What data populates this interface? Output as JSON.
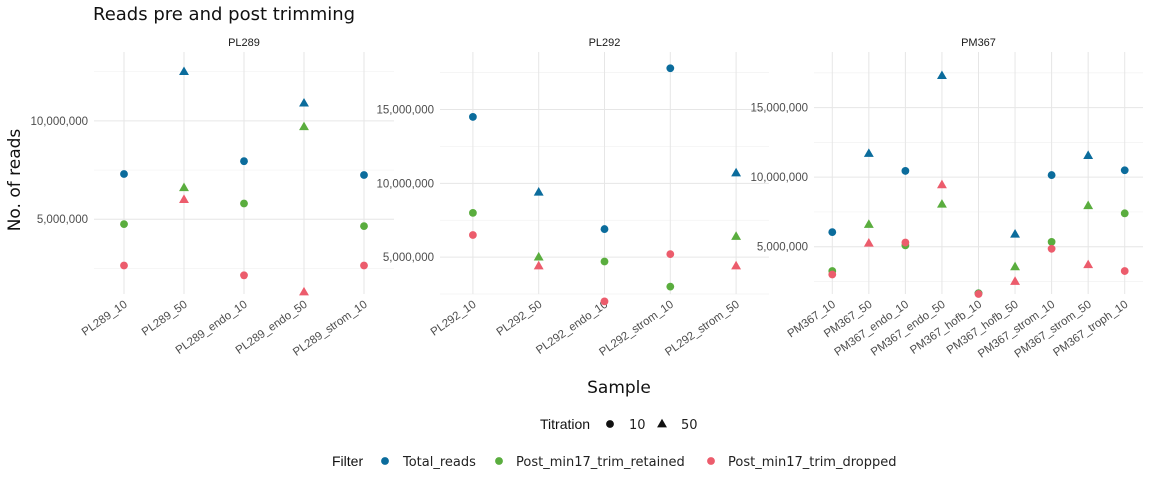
{
  "chart_data": {
    "type": "scatter",
    "title": "Reads pre and post trimming",
    "xlabel": "Sample",
    "ylabel": "No. of reads",
    "grid": true,
    "legends": {
      "titration": {
        "title": "Titration",
        "items": [
          {
            "label": "10",
            "shape": "circle"
          },
          {
            "label": "50",
            "shape": "triangle"
          }
        ]
      },
      "filter": {
        "title": "Filter",
        "items": [
          {
            "label": "Total_reads",
            "color": "#0b6c9c"
          },
          {
            "label": "Post_min17_trim_retained",
            "color": "#5aad3e"
          },
          {
            "label": "Post_min17_trim_dropped",
            "color": "#ec5c6c"
          }
        ]
      }
    },
    "facets": [
      {
        "name": "PL289",
        "ylim": [
          1200000,
          13500000
        ],
        "yticks": [
          5000000,
          10000000
        ],
        "ytick_labels": [
          "5,000,000",
          "10,000,000"
        ],
        "categories": [
          "PL289_10",
          "PL289_50",
          "PL289_endo_10",
          "PL289_endo_50",
          "PL289_strom_10"
        ],
        "titration": [
          "10",
          "50",
          "10",
          "50",
          "10"
        ],
        "series": [
          {
            "name": "Total_reads",
            "values": [
              7300000,
              12500000,
              7950000,
              10900000,
              7250000
            ]
          },
          {
            "name": "Post_min17_trim_retained",
            "values": [
              4750000,
              6600000,
              5800000,
              9700000,
              4650000
            ]
          },
          {
            "name": "Post_min17_trim_dropped",
            "values": [
              2650000,
              6000000,
              2150000,
              1300000,
              2650000
            ]
          }
        ]
      },
      {
        "name": "PL292",
        "ylim": [
          2500000,
          18900000
        ],
        "yticks": [
          5000000,
          10000000,
          15000000
        ],
        "ytick_labels": [
          "5,000,000",
          "10,000,000",
          "15,000,000"
        ],
        "categories": [
          "PL292_10",
          "PL292_50",
          "PL292_endo_10",
          "PL292_strom_10",
          "PL292_strom_50"
        ],
        "titration": [
          "10",
          "50",
          "10",
          "10",
          "50"
        ],
        "series": [
          {
            "name": "Total_reads",
            "values": [
              14500000,
              9400000,
              6900000,
              17800000,
              10700000
            ]
          },
          {
            "name": "Post_min17_trim_retained",
            "values": [
              8000000,
              5000000,
              4700000,
              3000000,
              6400000
            ]
          },
          {
            "name": "Post_min17_trim_dropped",
            "values": [
              6500000,
              4400000,
              2000000,
              5200000,
              4400000
            ]
          }
        ]
      },
      {
        "name": "PM367",
        "ylim": [
          1600000,
          19000000
        ],
        "yticks": [
          5000000,
          10000000,
          15000000
        ],
        "ytick_labels": [
          "5,000,000",
          "10,000,000",
          "15,000,000"
        ],
        "categories": [
          "PM367_10",
          "PM367_50",
          "PM367_endo_10",
          "PM367_endo_50",
          "PM367_hofb_10",
          "PM367_hofb_50",
          "PM367_strom_10",
          "PM367_strom_50",
          "PM367_troph_10"
        ],
        "titration": [
          "10",
          "50",
          "10",
          "50",
          "10",
          "50",
          "10",
          "50",
          "10"
        ],
        "series": [
          {
            "name": "Total_reads",
            "values": [
              6050000,
              11700000,
              10450000,
              17300000,
              1650000,
              5900000,
              10150000,
              11550000,
              10500000
            ]
          },
          {
            "name": "Post_min17_trim_retained",
            "values": [
              3250000,
              6600000,
              5100000,
              8050000,
              1650000,
              3550000,
              5350000,
              7950000,
              7400000
            ]
          },
          {
            "name": "Post_min17_trim_dropped",
            "values": [
              3000000,
              5250000,
              5300000,
              9450000,
              1600000,
              2500000,
              4850000,
              3700000,
              3250000
            ]
          }
        ]
      }
    ]
  }
}
